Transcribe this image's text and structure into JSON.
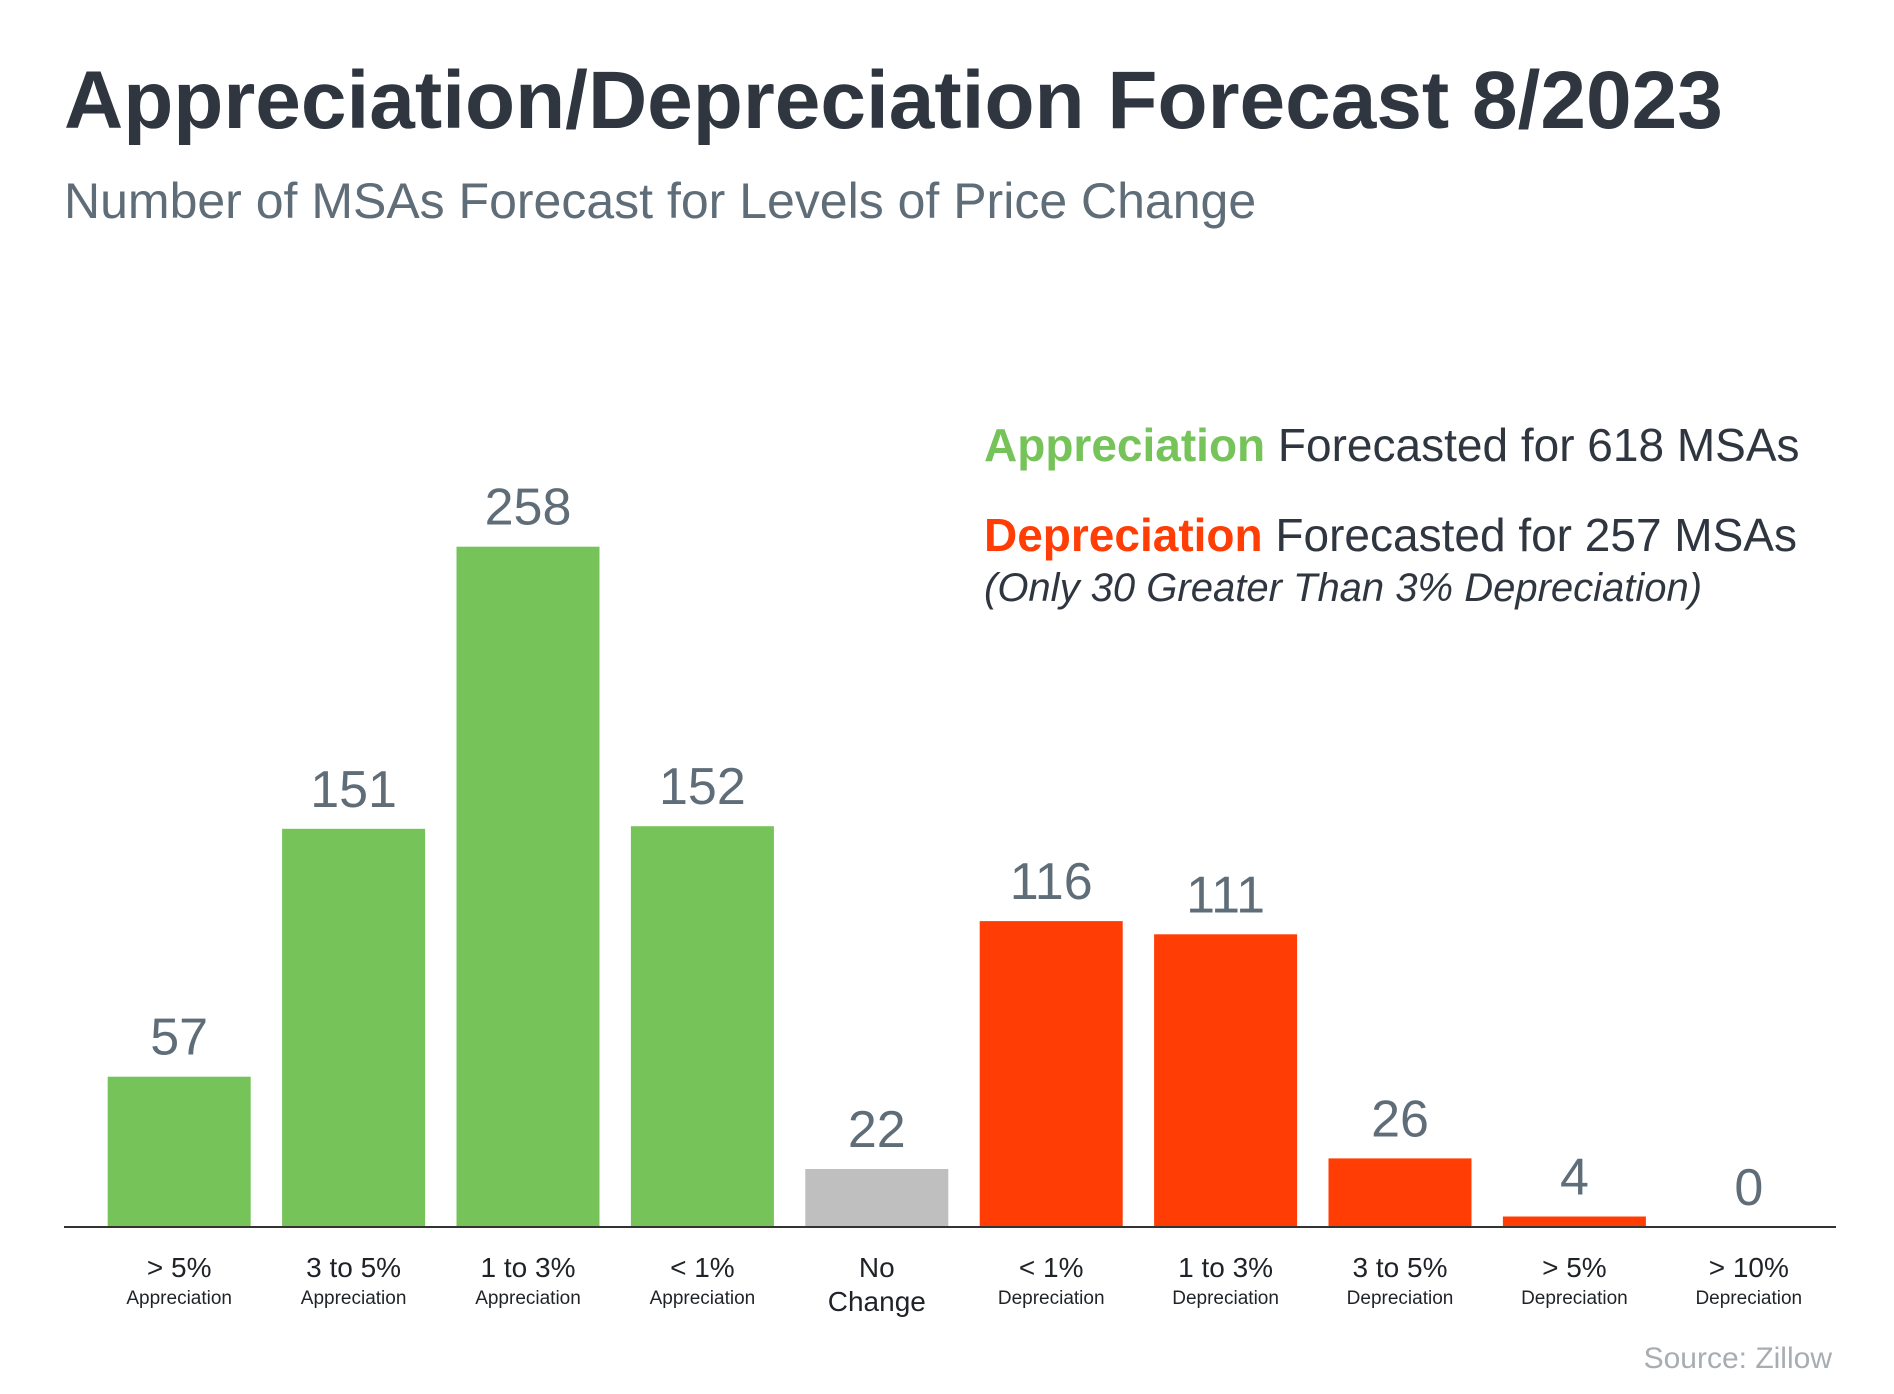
{
  "colors": {
    "appreciation": "#76c35a",
    "depreciation": "#ff3d05",
    "no_change": "#bfbfbf",
    "title": "#2f3640",
    "subtitle": "#5f6d78",
    "value_label": "#5f6d78",
    "source": "#a8adb2",
    "axis": "#333333"
  },
  "legend": {
    "appreciation_keyword": "Appreciation",
    "appreciation_text": " Forecasted for 618 MSAs",
    "depreciation_keyword": "Depreciation",
    "depreciation_text": " Forecasted for 257 MSAs",
    "note": "(Only 30 Greater Than 3% Depreciation)"
  },
  "source": "Source: Zillow",
  "chart_data": {
    "type": "bar",
    "title": "Appreciation/Depreciation Forecast 8/2023",
    "subtitle": "Number of MSAs Forecast for Levels of Price Change",
    "xlabel": "",
    "ylabel": "",
    "ylim": [
      0,
      300
    ],
    "grid": false,
    "categories": [
      {
        "label": "> 5%",
        "sublabel": "Appreciation",
        "group": "appreciation"
      },
      {
        "label": "3 to 5%",
        "sublabel": "Appreciation",
        "group": "appreciation"
      },
      {
        "label": "1 to 3%",
        "sublabel": "Appreciation",
        "group": "appreciation"
      },
      {
        "label": "< 1%",
        "sublabel": "Appreciation",
        "group": "appreciation"
      },
      {
        "label": "No",
        "sublabel": "Change",
        "group": "no_change"
      },
      {
        "label": "< 1%",
        "sublabel": "Depreciation",
        "group": "depreciation"
      },
      {
        "label": "1 to 3%",
        "sublabel": "Depreciation",
        "group": "depreciation"
      },
      {
        "label": "3 to 5%",
        "sublabel": "Depreciation",
        "group": "depreciation"
      },
      {
        "label": "> 5%",
        "sublabel": "Depreciation",
        "group": "depreciation"
      },
      {
        "label": "> 10%",
        "sublabel": "Depreciation",
        "group": "depreciation"
      }
    ],
    "values": [
      57,
      151,
      258,
      152,
      22,
      116,
      111,
      26,
      4,
      0
    ]
  }
}
